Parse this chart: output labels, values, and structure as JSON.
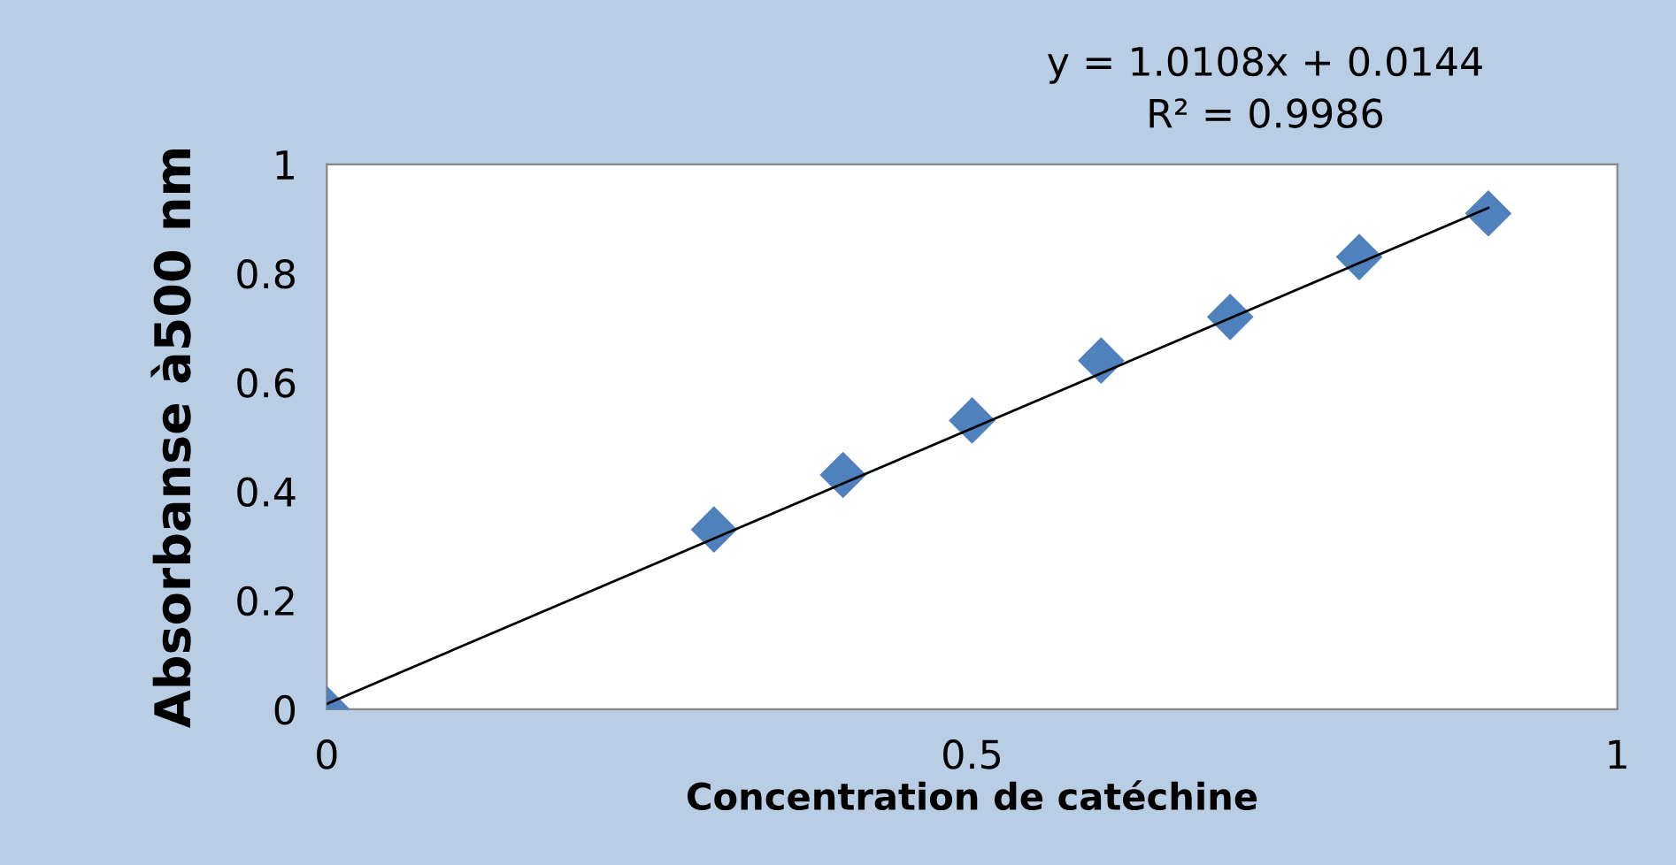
{
  "chart_data": {
    "type": "scatter",
    "xlabel": "Concentration de catéchine",
    "ylabel": "Absorbanse à500 nm",
    "annotations": [
      "y = 1.0108x + 0.0144",
      "R² = 0.9986"
    ],
    "xlim": [
      0,
      1
    ],
    "ylim": [
      0,
      1
    ],
    "xticks": [
      0,
      0.5,
      1
    ],
    "yticks": [
      0,
      0.2,
      0.4,
      0.6,
      0.8,
      1
    ],
    "grid": false,
    "legend": false,
    "series": [
      {
        "color": "#4f81bd",
        "marker": "diamond",
        "x": [
          0,
          0.3,
          0.4,
          0.5,
          0.6,
          0.7,
          0.8,
          0.9
        ],
        "values": [
          0,
          0.33,
          0.43,
          0.53,
          0.64,
          0.72,
          0.83,
          0.91
        ]
      },
      {
        "type": "line",
        "color": "#000000",
        "marker": "none",
        "line_style": "solid",
        "x": [
          0,
          0.9
        ],
        "values": [
          0.01,
          0.92
        ]
      }
    ]
  }
}
